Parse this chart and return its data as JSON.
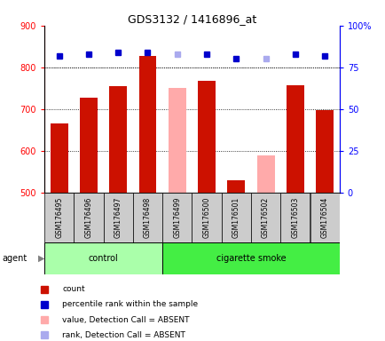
{
  "title": "GDS3132 / 1416896_at",
  "samples": [
    "GSM176495",
    "GSM176496",
    "GSM176497",
    "GSM176498",
    "GSM176499",
    "GSM176500",
    "GSM176501",
    "GSM176502",
    "GSM176503",
    "GSM176504"
  ],
  "count_values": [
    665,
    727,
    756,
    828,
    null,
    768,
    530,
    null,
    758,
    698
  ],
  "count_absent": [
    null,
    null,
    null,
    null,
    750,
    null,
    null,
    590,
    null,
    null
  ],
  "rank_values": [
    82,
    83,
    84,
    84,
    null,
    83,
    80,
    null,
    83,
    82
  ],
  "rank_absent": [
    null,
    null,
    null,
    null,
    83,
    null,
    null,
    80,
    null,
    null
  ],
  "n_control": 4,
  "n_smoke": 6,
  "ylim_left": [
    500,
    900
  ],
  "ylim_right": [
    0,
    100
  ],
  "yticks_left": [
    500,
    600,
    700,
    800,
    900
  ],
  "yticks_right": [
    0,
    25,
    50,
    75,
    100
  ],
  "bar_color_present": "#CC1100",
  "bar_color_absent": "#FFAAAA",
  "marker_color_present": "#0000CC",
  "marker_color_absent": "#AAAAEE",
  "control_bg": "#AAFFAA",
  "smoke_bg": "#44EE44",
  "sample_bg": "#CCCCCC",
  "legend_items": [
    {
      "color": "#CC1100",
      "label": "count"
    },
    {
      "color": "#0000CC",
      "label": "percentile rank within the sample"
    },
    {
      "color": "#FFAAAA",
      "label": "value, Detection Call = ABSENT"
    },
    {
      "color": "#AAAAEE",
      "label": "rank, Detection Call = ABSENT"
    }
  ]
}
